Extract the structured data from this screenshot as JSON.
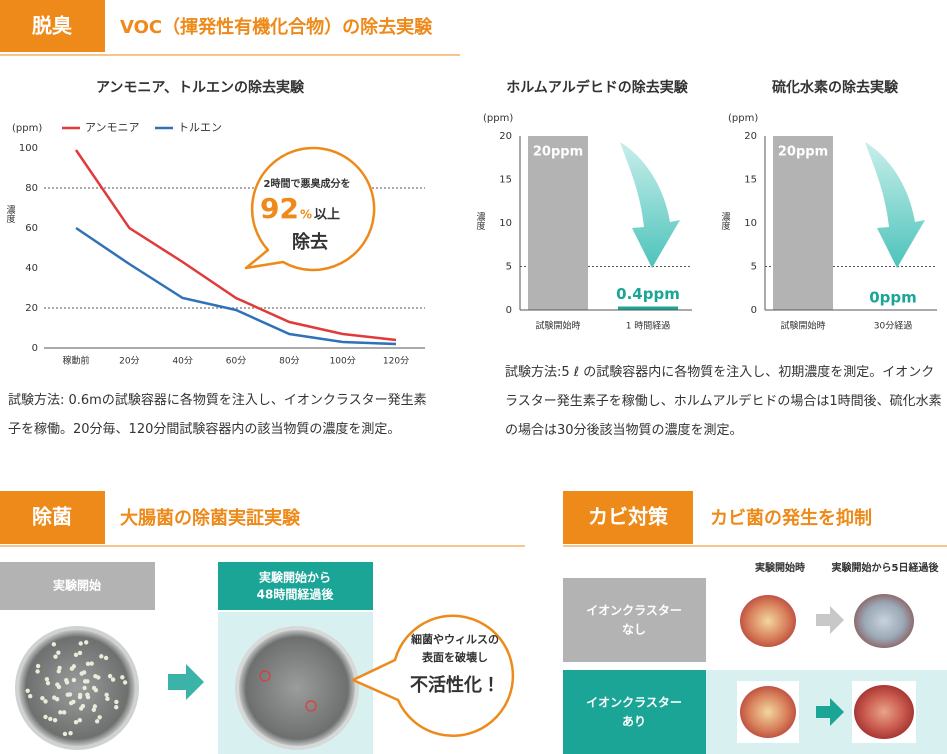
{
  "deodorize": {
    "tab": "脱臭",
    "title": "VOC（揮発性有機化合物）の除去実験"
  },
  "chart_data": [
    {
      "type": "line",
      "title": "アンモニア、トルエンの除去実験",
      "unit_label": "(ppm)",
      "ylabel": "濃度",
      "categories": [
        "稼動前",
        "20分",
        "40分",
        "60分",
        "80分",
        "100分",
        "120分"
      ],
      "series": [
        {
          "name": "アンモニア",
          "color": "#e03a3a",
          "values": [
            99,
            60,
            43,
            25,
            13,
            7,
            4
          ]
        },
        {
          "name": "トルエン",
          "color": "#2f72b8",
          "values": [
            60,
            42,
            25,
            19,
            7,
            3,
            2
          ]
        }
      ],
      "ylim": [
        0,
        100
      ],
      "yticks": [
        0,
        20,
        40,
        60,
        80,
        100
      ],
      "grid_lines": [
        20,
        80
      ],
      "annotation": {
        "line1": "2時間で悪臭成分を",
        "number": "92",
        "unit": "%",
        "suffix": "以上",
        "line2": "除去"
      }
    },
    {
      "type": "bar",
      "title": "ホルムアルデヒドの除去実験",
      "unit_label": "(ppm)",
      "ylabel": "濃度",
      "categories": [
        "試験開始時",
        "1 時間経過"
      ],
      "values": [
        20,
        0.4
      ],
      "value_labels": [
        "20ppm",
        "0.4ppm"
      ],
      "colors": [
        "#b3b3b3",
        "#1aa597"
      ],
      "ylim": [
        0,
        20
      ],
      "yticks": [
        0,
        5,
        10,
        15,
        20
      ],
      "grid_lines": [
        5
      ]
    },
    {
      "type": "bar",
      "title": "硫化水素の除去実験",
      "unit_label": "(ppm)",
      "ylabel": "濃度",
      "categories": [
        "試験開始時",
        "30分経過"
      ],
      "values": [
        20,
        0
      ],
      "value_labels": [
        "20ppm",
        "0ppm"
      ],
      "colors": [
        "#b3b3b3",
        "#1aa597"
      ],
      "ylim": [
        0,
        20
      ],
      "yticks": [
        0,
        5,
        10,
        15,
        20
      ],
      "grid_lines": [
        5
      ]
    }
  ],
  "notes": [
    "試験方法: 0.6mの試験容器に各物質を注入し、イオンクラスター発生素子を稼働。20分毎、120分間試験容器内の該当物質の濃度を測定。",
    "試験方法:5 ℓ の試験容器内に各物質を注入し、初期濃度を測定。イオンクラスター発生素子を稼働し、ホルムアルデヒドの場合は1時間後、硫化水素の場合は30分後該当物質の濃度を測定。"
  ],
  "sterilize": {
    "tab": "除菌",
    "title": "大腸菌の除菌実証実験",
    "before": "実験開始",
    "after": [
      "実験開始から",
      "48時間経過後"
    ],
    "callout": [
      "細菌やウィルスの",
      "表面を破壊し",
      "不活性化！"
    ]
  },
  "mold": {
    "tab": "カビ対策",
    "title": "カビ菌の発生を抑制",
    "columns": [
      "実験開始時",
      "実験開始から5日経過後"
    ],
    "rows": [
      [
        "イオンクラスター",
        "なし"
      ],
      [
        "イオンクラスター",
        "あり"
      ]
    ]
  }
}
